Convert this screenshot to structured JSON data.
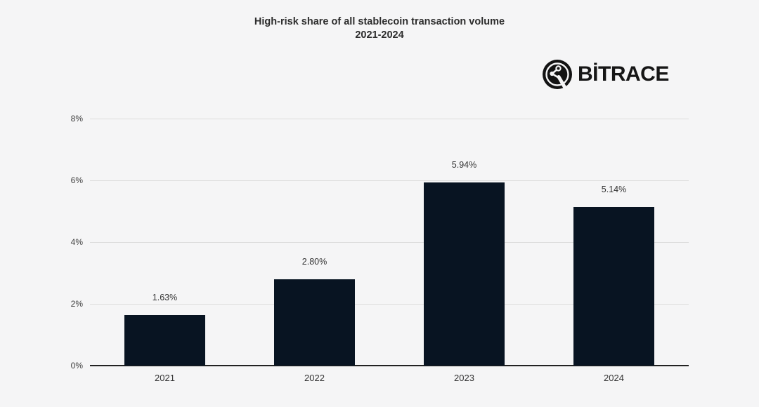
{
  "page": {
    "background": "#f5f5f6"
  },
  "brand": {
    "name": "BİTRACE",
    "icon": "bitrace-network-icon",
    "color": "#161616"
  },
  "chart_data": {
    "type": "bar",
    "title": "High-risk share of all stablecoin transaction volume",
    "subtitle": "2021-2024",
    "categories": [
      "2021",
      "2022",
      "2023",
      "2024"
    ],
    "values": [
      1.63,
      2.8,
      5.94,
      5.14
    ],
    "value_labels": [
      "1.63%",
      "2.80%",
      "5.94%",
      "5.14%"
    ],
    "yticks": [
      0,
      2,
      4,
      6,
      8
    ],
    "ytick_labels": [
      "0%",
      "2%",
      "4%",
      "6%",
      "8%"
    ],
    "ylim": [
      0,
      8
    ],
    "grid": true,
    "legend": "none",
    "bar_color": "#081422",
    "grid_color": "#dcdcdc",
    "axis_color": "#222222"
  }
}
